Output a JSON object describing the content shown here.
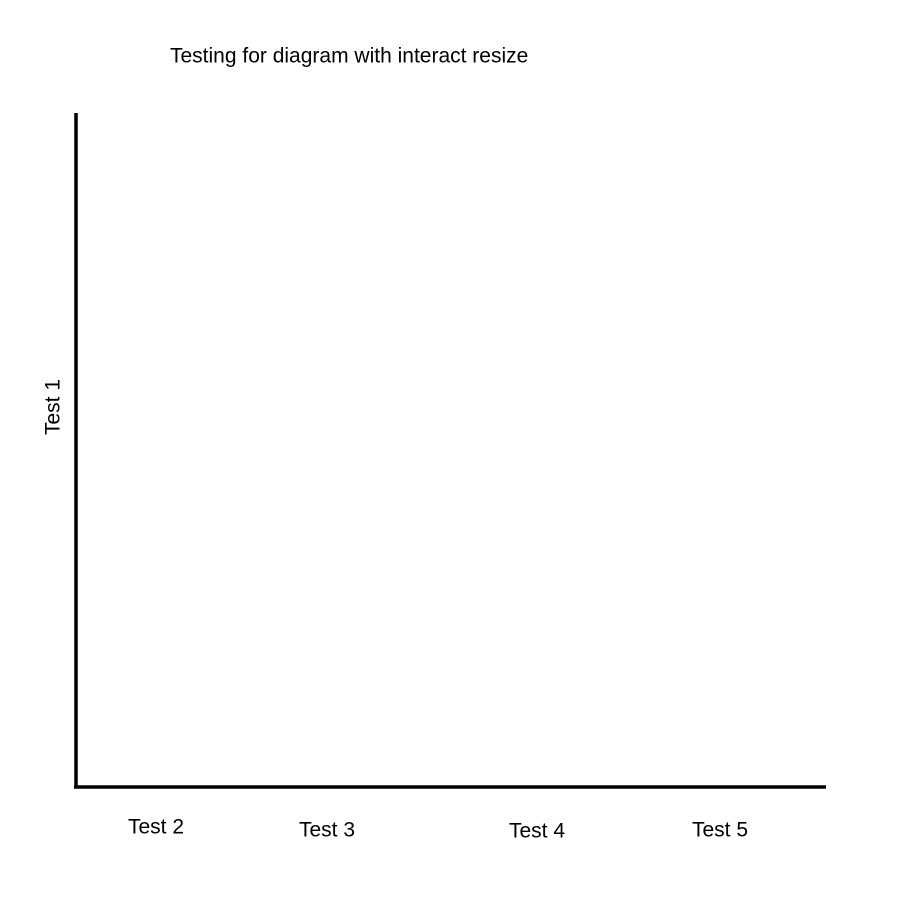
{
  "title": "Testing for diagram with interact resize",
  "y_label": "Test 1",
  "x_labels": [
    "Test 2",
    "Test 3",
    "Test 4",
    "Test 5"
  ]
}
